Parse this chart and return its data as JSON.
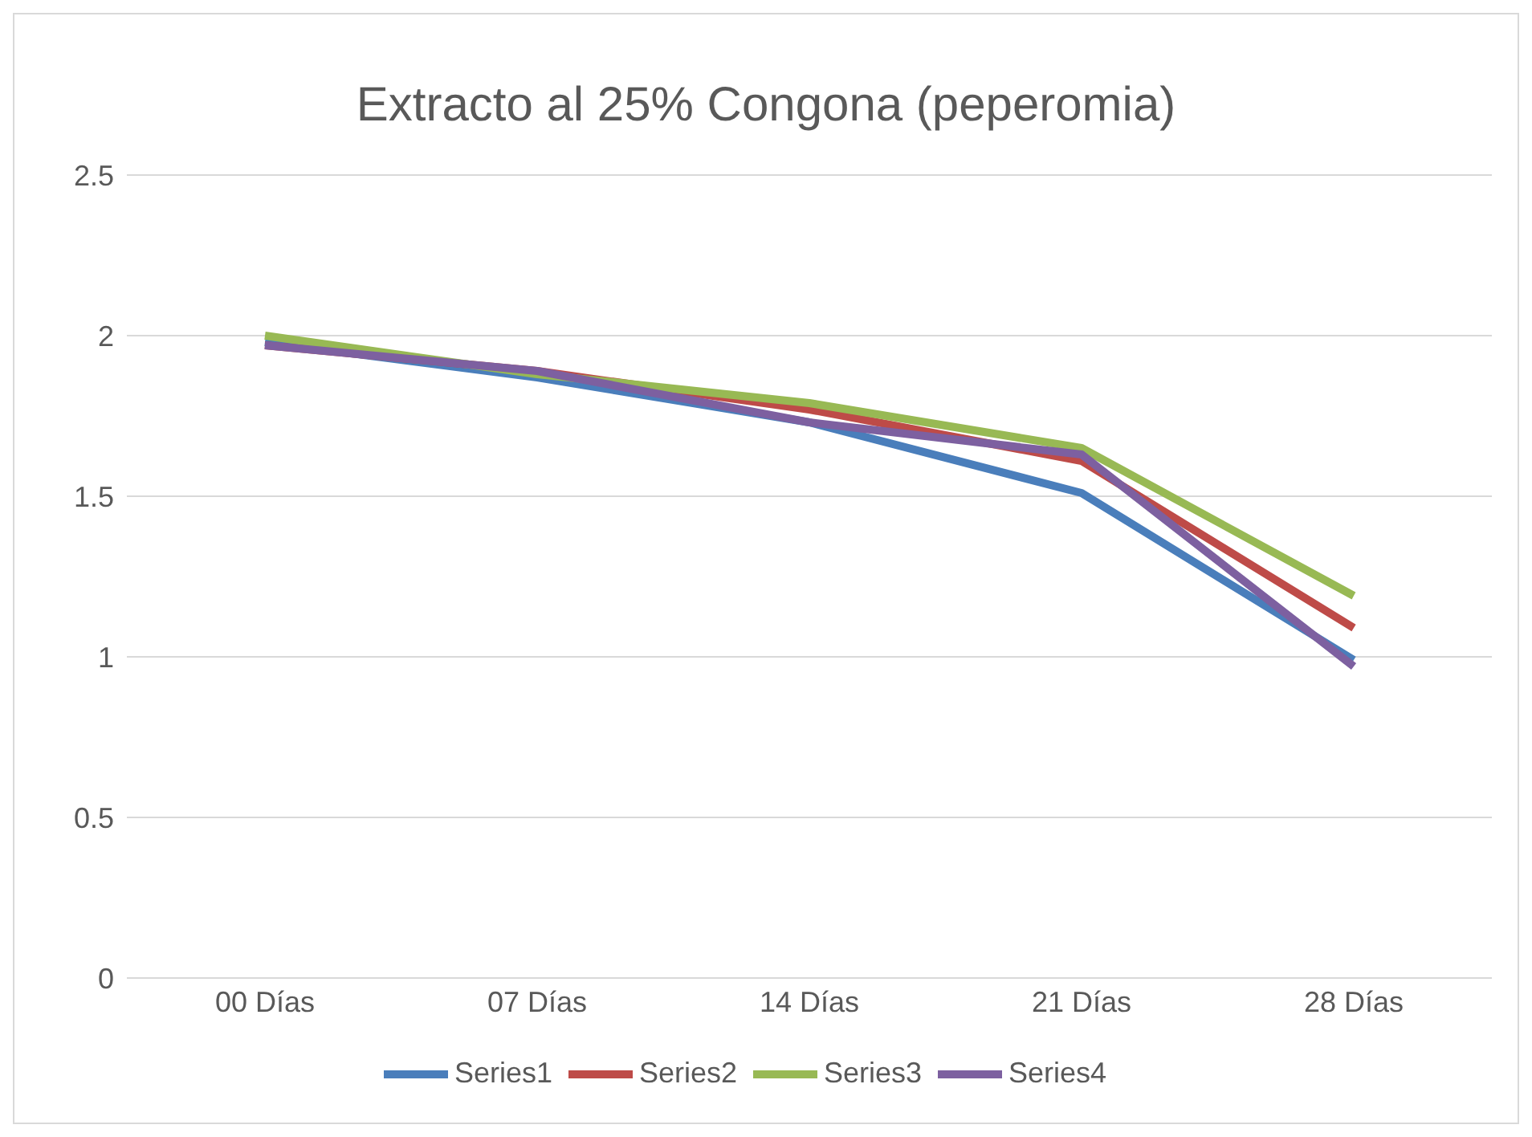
{
  "chart_data": {
    "type": "line",
    "title": "Extracto al 25% Congona (peperomia)",
    "categories": [
      "00 Días",
      "07 Días",
      "14 Días",
      "21 Días",
      "28 Días"
    ],
    "series": [
      {
        "name": "Series1",
        "color": "#4a7ebb",
        "values": [
          1.98,
          1.87,
          1.73,
          1.51,
          0.99
        ]
      },
      {
        "name": "Series2",
        "color": "#be4b48",
        "values": [
          1.97,
          1.89,
          1.77,
          1.61,
          1.09
        ]
      },
      {
        "name": "Series3",
        "color": "#98b954",
        "values": [
          2.0,
          1.88,
          1.79,
          1.65,
          1.19
        ]
      },
      {
        "name": "Series4",
        "color": "#7d60a0",
        "values": [
          1.97,
          1.89,
          1.73,
          1.63,
          0.97
        ]
      }
    ],
    "ylim": [
      0,
      2.5
    ],
    "yticks": [
      0,
      0.5,
      1,
      1.5,
      2,
      2.5
    ],
    "grid": "y",
    "legend": "bottom",
    "marker": "none",
    "line_style": "solid"
  }
}
